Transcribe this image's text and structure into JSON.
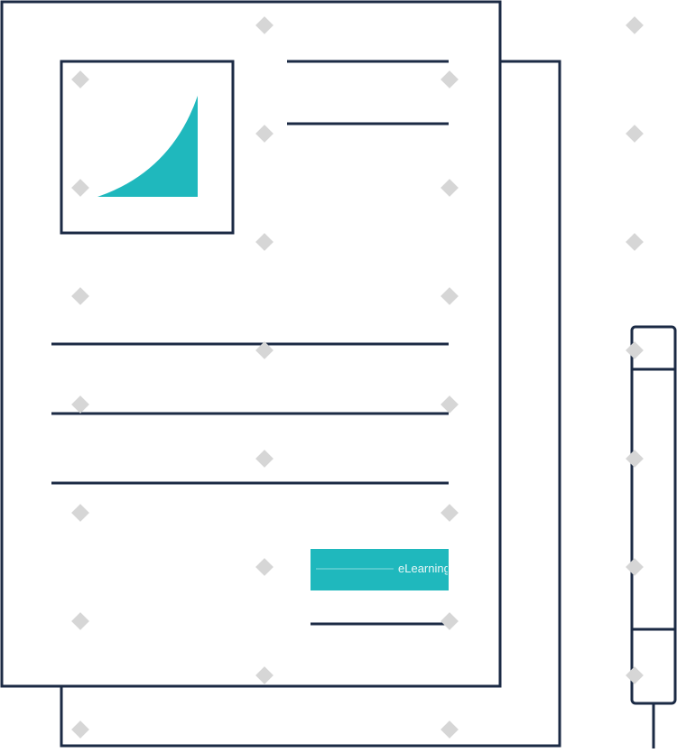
{
  "colors": {
    "outline": "#1b2a44",
    "accent": "#1fb8bd",
    "paper": "#ffffff",
    "watermark": "#d6d6d6"
  },
  "icons": {
    "document": "document-icon",
    "chart": "chart-icon",
    "pen": "pen-icon"
  },
  "watermark": {
    "text": "eLearning"
  }
}
